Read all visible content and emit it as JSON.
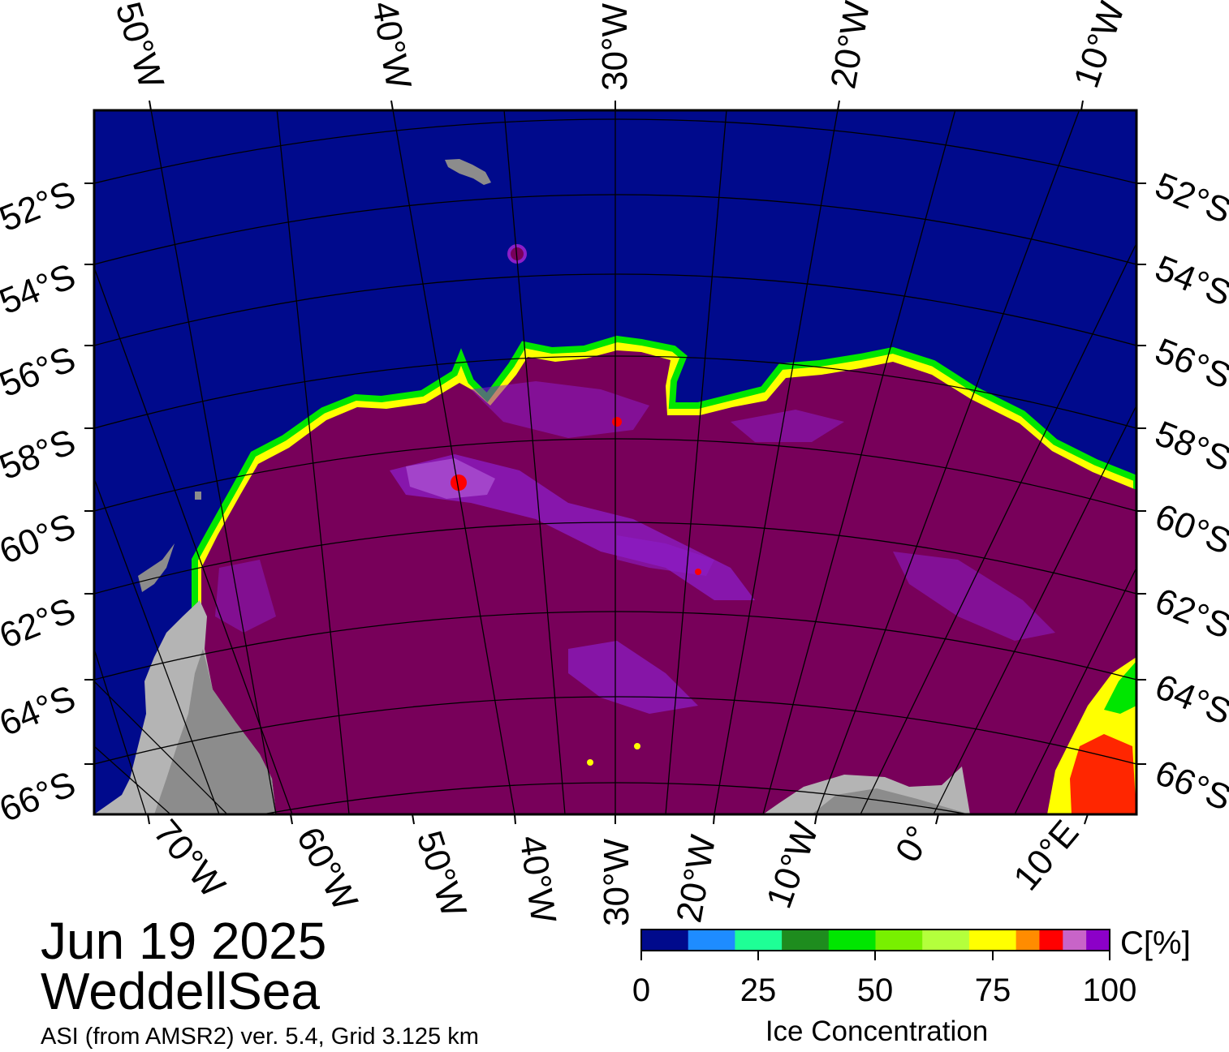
{
  "header": {
    "date": "Jun 19 2025",
    "region": "WeddellSea"
  },
  "footer": {
    "product": "ASI (from AMSR2) ver. 5.4,  Grid 3.125 km"
  },
  "top_lon_labels": [
    "50°W",
    "40°W",
    "30°W",
    "20°W",
    "10°W"
  ],
  "bottom_lon_labels": [
    "70°W",
    "60°W",
    "50°W",
    "40°W",
    "30°W",
    "20°W",
    "10°W",
    "0°",
    "10°E"
  ],
  "left_lat_labels": [
    "52°S",
    "54°S",
    "56°S",
    "58°S",
    "60°S",
    "62°S",
    "64°S",
    "66°S"
  ],
  "right_lat_labels": [
    "52°S",
    "54°S",
    "56°S",
    "58°S",
    "60°S",
    "62°S",
    "64°S",
    "66°S"
  ],
  "colorbar": {
    "title": "Ice Concentration",
    "unit": "C[%]",
    "ticks": [
      "0",
      "25",
      "50",
      "75",
      "100"
    ],
    "colors": [
      "#000a8c",
      "#1e8cff",
      "#1eff96",
      "#1e8c1e",
      "#00e600",
      "#78f000",
      "#b4ff3c",
      "#ffff00",
      "#ff8c00",
      "#ff0000",
      "#c864c8",
      "#8c00c8"
    ]
  },
  "colors": {
    "ocean": "#000a8c",
    "sea_ice": "#78005a",
    "land": "#8c8c8c",
    "land_light": "#b4b4b4",
    "ice_purple": "#8c1ec8",
    "ice_lilac": "#aa50d2"
  }
}
